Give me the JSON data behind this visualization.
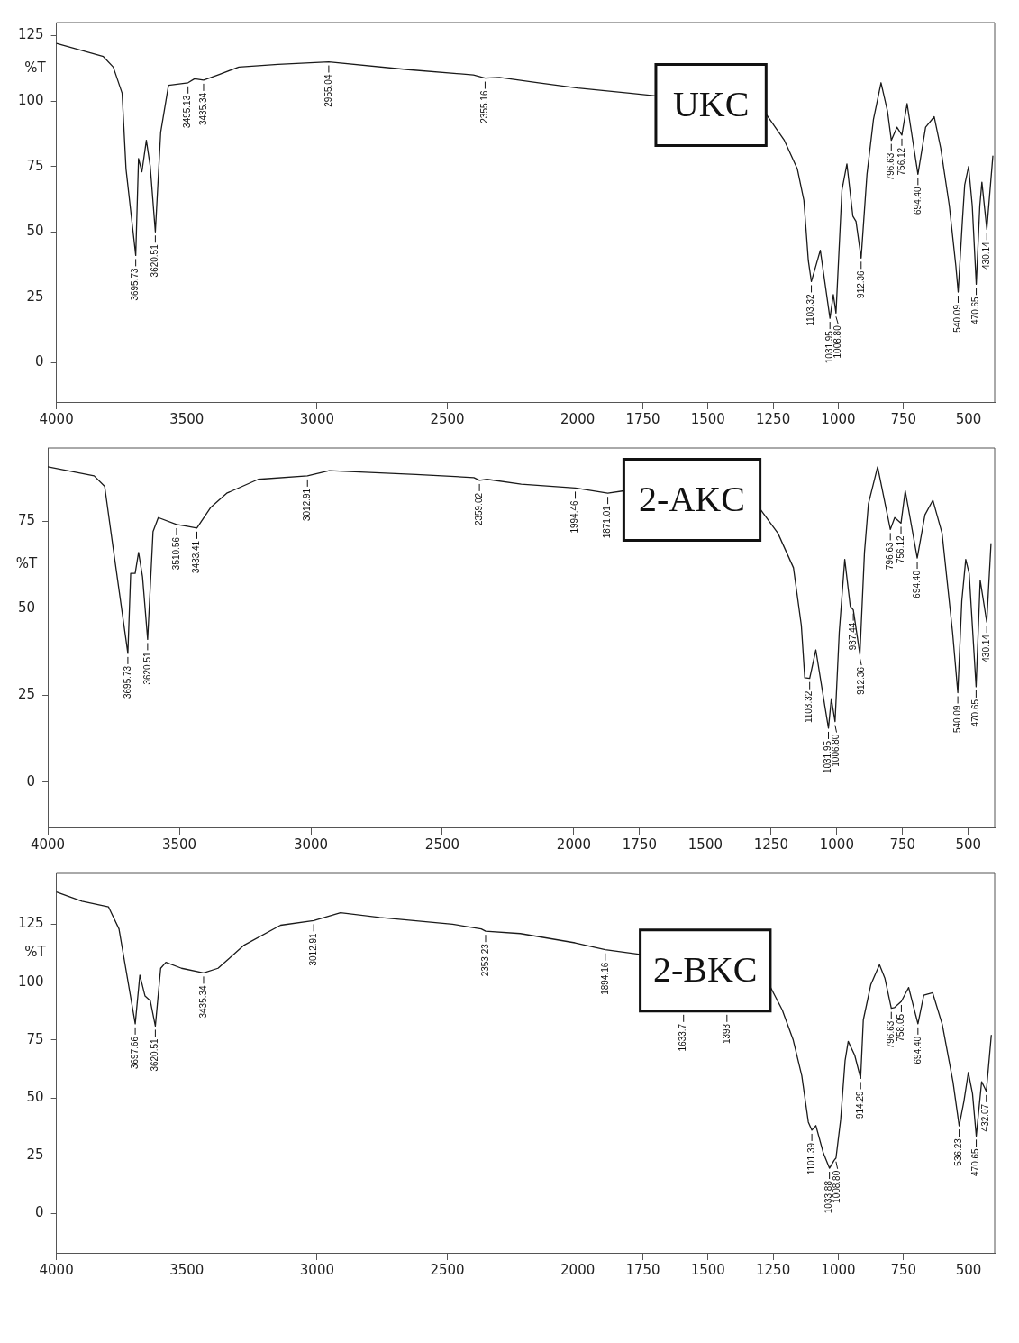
{
  "chart_data": [
    {
      "type": "line",
      "title": "UKC",
      "ylabel": "%T",
      "color": "#1a1a1a",
      "marker": "none",
      "xlim": [
        4000,
        400
      ],
      "xticks": [
        4000,
        3500,
        3000,
        2500,
        2000,
        1750,
        1500,
        1250,
        1000,
        750,
        500
      ],
      "ylim": [
        -15,
        130
      ],
      "yticks": [
        0,
        25,
        50,
        75,
        100,
        125
      ],
      "x": [
        4000,
        3820,
        3782,
        3748,
        3733,
        3695.73,
        3685,
        3672,
        3655,
        3640,
        3620.51,
        3600,
        3570,
        3495.13,
        3470,
        3435.34,
        3380,
        3300,
        3150,
        2955.04,
        2650,
        2400,
        2355.16,
        2300,
        2150,
        2000,
        1800,
        1700,
        1500,
        1277,
        1207,
        1157,
        1132,
        1115,
        1103.32,
        1069,
        1031.95,
        1019,
        1008.8,
        986,
        967,
        944,
        932,
        912.36,
        890,
        865,
        836,
        811,
        796.63,
        775,
        756.12,
        736,
        694.4,
        665,
        632,
        607,
        574,
        549,
        540.09,
        524,
        515,
        500,
        486,
        470.65,
        457,
        449,
        430.14,
        407
      ],
      "values": [
        122,
        117,
        113,
        103,
        74,
        41,
        78,
        73,
        85,
        75,
        50,
        88,
        106,
        107,
        108.5,
        108,
        110,
        113,
        114,
        115,
        112,
        110,
        108.8,
        109,
        107,
        105,
        103,
        102,
        null,
        95,
        85,
        74,
        62,
        39,
        31,
        43,
        17,
        26,
        19,
        66,
        76,
        56,
        54,
        40,
        72,
        93,
        107,
        96,
        85,
        90,
        87,
        99,
        72,
        90,
        94,
        82,
        60,
        37,
        27,
        54,
        68,
        75,
        60,
        30,
        60,
        69,
        51,
        79
      ],
      "annotations": [
        {
          "text": "3695.73",
          "x": 3695.73,
          "y": 41
        },
        {
          "text": "3620.51",
          "x": 3620.51,
          "y": 50
        },
        {
          "text": "3495.13",
          "x": 3495.13,
          "y": 107
        },
        {
          "text": "3435.34",
          "x": 3435.34,
          "y": 108
        },
        {
          "text": "2955.04",
          "x": 2955.04,
          "y": 115
        },
        {
          "text": "2355.16",
          "x": 2355.16,
          "y": 108.8
        },
        {
          "text": "1103.32",
          "x": 1103.32,
          "y": 31
        },
        {
          "text": "1031.95",
          "x": 1031.95,
          "y": 17
        },
        {
          "text": "1008.80",
          "x": 1008.8,
          "y": 19
        },
        {
          "text": "912.36",
          "x": 912.36,
          "y": 40
        },
        {
          "text": "796.63",
          "x": 796.63,
          "y": 85
        },
        {
          "text": "756.12",
          "x": 756.12,
          "y": 87
        },
        {
          "text": "694.40",
          "x": 694.4,
          "y": 72
        },
        {
          "text": "540.09",
          "x": 540.09,
          "y": 27
        },
        {
          "text": "470.65",
          "x": 470.65,
          "y": 30
        },
        {
          "text": "430.14",
          "x": 430.14,
          "y": 51
        }
      ]
    },
    {
      "type": "line",
      "title": "2-AKC",
      "ylabel": "%T",
      "color": "#1a1a1a",
      "marker": "none",
      "xlim": [
        4000,
        400
      ],
      "xticks": [
        4000,
        3500,
        3000,
        2500,
        2000,
        1750,
        1500,
        1250,
        1000,
        750,
        500
      ],
      "ylim": [
        -13,
        96
      ],
      "yticks": [
        0,
        25,
        50,
        75
      ],
      "x": [
        4000,
        3824,
        3784,
        3753,
        3695.73,
        3685,
        3668,
        3655,
        3640,
        3620.51,
        3600,
        3580,
        3510.56,
        3470,
        3433.41,
        3380,
        3320,
        3200,
        3012.91,
        2930,
        2600,
        2380,
        2359.02,
        2330,
        2200,
        1994.46,
        1871.01,
        1810,
        1500,
        1292,
        1224,
        1165,
        1135,
        1122,
        1103.32,
        1080,
        1046,
        1031.95,
        1021,
        1006.8,
        991,
        970,
        949,
        937.44,
        912.36,
        895,
        880,
        845,
        796.63,
        780,
        756.12,
        740,
        694.4,
        665,
        635,
        600,
        560,
        540.09,
        525,
        510,
        497,
        470.65,
        455,
        430.14,
        414
      ],
      "values": [
        90.6,
        88,
        85,
        68,
        37,
        60,
        60,
        66,
        59,
        41,
        72,
        76,
        74,
        73.5,
        73,
        79,
        83,
        87,
        88,
        89.5,
        88.4,
        87.5,
        86.7,
        87,
        85.6,
        84.5,
        83,
        83.7,
        null,
        78.5,
        71.5,
        61.6,
        45,
        30,
        29.8,
        38,
        22,
        15.5,
        24,
        17.4,
        43,
        64,
        50.5,
        49.5,
        36.7,
        66,
        80,
        90.6,
        72.6,
        76,
        74.4,
        83.7,
        64.4,
        76.8,
        81,
        71.5,
        43,
        25.7,
        52,
        64,
        60,
        27.4,
        58,
        46,
        68.5
      ],
      "annotations": [
        {
          "text": "3695.73",
          "x": 3695.73,
          "y": 37
        },
        {
          "text": "3620.51",
          "x": 3620.51,
          "y": 41
        },
        {
          "text": "3510.56",
          "x": 3510.56,
          "y": 74
        },
        {
          "text": "3433.41",
          "x": 3433.41,
          "y": 73
        },
        {
          "text": "3012.91",
          "x": 3012.91,
          "y": 88
        },
        {
          "text": "2359.02",
          "x": 2359.02,
          "y": 86.7
        },
        {
          "text": "1994.46",
          "x": 1994.46,
          "y": 84.5
        },
        {
          "text": "1871.01",
          "x": 1871.01,
          "y": 83
        },
        {
          "text": "1103.32",
          "x": 1103.32,
          "y": 29.8
        },
        {
          "text": "1031.95",
          "x": 1031.95,
          "y": 15.5
        },
        {
          "text": "1006.80",
          "x": 1006.8,
          "y": 17.4
        },
        {
          "text": "937.44",
          "x": 937.44,
          "y": 49.5
        },
        {
          "text": "912.36",
          "x": 912.36,
          "y": 36.7
        },
        {
          "text": "796.63",
          "x": 796.63,
          "y": 72.6
        },
        {
          "text": "756.12",
          "x": 756.12,
          "y": 74.4
        },
        {
          "text": "694.40",
          "x": 694.4,
          "y": 64.4
        },
        {
          "text": "540.09",
          "x": 540.09,
          "y": 25.7
        },
        {
          "text": "470.65",
          "x": 470.65,
          "y": 27.4
        },
        {
          "text": "430.14",
          "x": 430.14,
          "y": 46
        }
      ]
    },
    {
      "type": "line",
      "title": "2-BKC",
      "ylabel": "%T",
      "color": "#1a1a1a",
      "marker": "none",
      "xlim": [
        4000,
        400
      ],
      "xticks": [
        4000,
        3500,
        3000,
        2500,
        2000,
        1750,
        1500,
        1250,
        1000,
        750,
        500
      ],
      "ylim": [
        -17,
        147
      ],
      "yticks": [
        0,
        25,
        50,
        75,
        100,
        125
      ],
      "x": [
        4000,
        3902,
        3800,
        3760,
        3697.66,
        3680,
        3660,
        3640,
        3620.51,
        3600,
        3580,
        3520,
        3435.34,
        3380,
        3280,
        3140,
        3012.91,
        2910,
        2760,
        2480,
        2370,
        2353.23,
        2220,
        2010,
        1894.16,
        1760,
        1500,
        1261,
        1215,
        1173,
        1140,
        1115,
        1101.39,
        1086,
        1057,
        1033.88,
        1016,
        1008.8,
        991,
        974,
        962,
        937,
        914.29,
        904,
        875,
        842,
        821,
        796.63,
        785,
        758.05,
        730,
        694.4,
        672,
        638,
        601,
        560,
        536.23,
        518,
        501,
        485,
        470.65,
        450,
        432.07,
        413
      ],
      "values": [
        139,
        135,
        132.5,
        123,
        82,
        103,
        94,
        92,
        81,
        106,
        108.6,
        106,
        104,
        106,
        116,
        124.6,
        126.6,
        130,
        128,
        125,
        123,
        122,
        121,
        117,
        114,
        112,
        null,
        98,
        88,
        75,
        59.5,
        39.5,
        36,
        38,
        26,
        19.6,
        23,
        24,
        40.5,
        66,
        74.4,
        68.4,
        58.4,
        83.7,
        99,
        107.6,
        101.6,
        88.7,
        89,
        91.7,
        97.7,
        82,
        94.4,
        95.4,
        81.7,
        57,
        37.9,
        48.5,
        61,
        51.8,
        33.5,
        57,
        52.8,
        77
      ],
      "annotations": [
        {
          "text": "3697.66",
          "x": 3697.66,
          "y": 82
        },
        {
          "text": "3620.51",
          "x": 3620.51,
          "y": 81
        },
        {
          "text": "3435.34",
          "x": 3435.34,
          "y": 104
        },
        {
          "text": "3012.91",
          "x": 3012.91,
          "y": 126.6
        },
        {
          "text": "2353.23",
          "x": 2353.23,
          "y": 122
        },
        {
          "text": "1894.16",
          "x": 1894.16,
          "y": 114
        },
        "1633.7",
        "1393",
        {
          "text": "1101.39",
          "x": 1101.39,
          "y": 36
        },
        {
          "text": "1033.88",
          "x": 1033.88,
          "y": 19.6
        },
        {
          "text": "1008.80",
          "x": 1008.8,
          "y": 24
        },
        {
          "text": "914.29",
          "x": 914.29,
          "y": 58.4
        },
        {
          "text": "796.63",
          "x": 796.63,
          "y": 88.7
        },
        {
          "text": "758.05",
          "x": 758.05,
          "y": 91.7
        },
        {
          "text": "694.40",
          "x": 694.4,
          "y": 82
        },
        {
          "text": "536.23",
          "x": 536.23,
          "y": 37.9
        },
        {
          "text": "470.65",
          "x": 470.65,
          "y": 33.5
        },
        {
          "text": "432.07",
          "x": 432.07,
          "y": 52.8
        }
      ]
    }
  ]
}
